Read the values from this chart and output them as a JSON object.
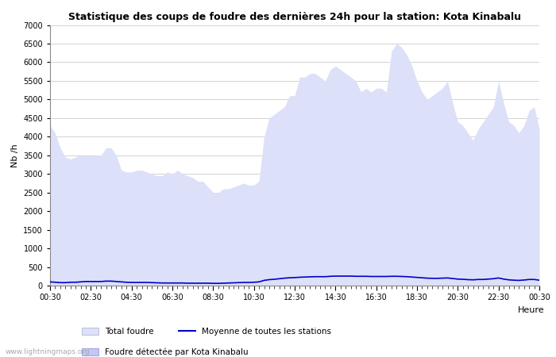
{
  "title": "Statistique des coups de foudre des dernières 24h pour la station: Kota Kinabalu",
  "ylabel": "Nb /h",
  "xlabel": "Heure",
  "watermark": "www.lightningmaps.org",
  "ylim": [
    0,
    7000
  ],
  "yticks": [
    0,
    500,
    1000,
    1500,
    2000,
    2500,
    3000,
    3500,
    4000,
    4500,
    5000,
    5500,
    6000,
    6500,
    7000
  ],
  "xtick_display": [
    "00:30",
    "02:30",
    "04:30",
    "06:30",
    "08:30",
    "10:30",
    "12:30",
    "14:30",
    "16:30",
    "18:30",
    "20:30",
    "22:30",
    "00:30"
  ],
  "total_foudre_color": "#dce0f8",
  "kota_color": "#c0c8f8",
  "moyenne_color": "#0000cc",
  "background_color": "#ffffff",
  "grid_color": "#cccccc",
  "total_foudre": [
    4300,
    4100,
    3700,
    3450,
    3400,
    3450,
    3500,
    3480,
    3480,
    3500,
    3500,
    3700,
    3700,
    3500,
    3100,
    3050,
    3050,
    3100,
    3100,
    3050,
    3000,
    2950,
    2950,
    3050,
    3000,
    3100,
    3000,
    2950,
    2900,
    2800,
    2800,
    2650,
    2500,
    2500,
    2600,
    2600,
    2650,
    2700,
    2750,
    2700,
    2700,
    2800,
    4000,
    4500,
    4600,
    4700,
    4800,
    5100,
    5100,
    5600,
    5600,
    5700,
    5700,
    5600,
    5500,
    5800,
    5900,
    5800,
    5700,
    5600,
    5500,
    5200,
    5300,
    5200,
    5300,
    5300,
    5200,
    6300,
    6500,
    6400,
    6200,
    5900,
    5500,
    5200,
    5000,
    5100,
    5200,
    5300,
    5500,
    4900,
    4400,
    4300,
    4100,
    3900,
    4200,
    4400,
    4600,
    4800,
    5500,
    4900,
    4400,
    4300,
    4100,
    4300,
    4700,
    4800,
    4200
  ],
  "moyenne": [
    100,
    90,
    80,
    80,
    90,
    90,
    100,
    110,
    110,
    110,
    110,
    120,
    120,
    110,
    100,
    90,
    85,
    85,
    85,
    85,
    80,
    75,
    70,
    70,
    70,
    70,
    70,
    65,
    65,
    65,
    65,
    65,
    60,
    60,
    65,
    70,
    75,
    80,
    85,
    85,
    90,
    100,
    140,
    160,
    170,
    185,
    200,
    210,
    215,
    225,
    230,
    235,
    240,
    240,
    240,
    250,
    255,
    255,
    255,
    255,
    250,
    250,
    250,
    245,
    245,
    245,
    245,
    250,
    250,
    245,
    240,
    230,
    220,
    210,
    200,
    195,
    195,
    200,
    205,
    190,
    175,
    170,
    160,
    155,
    165,
    165,
    175,
    185,
    205,
    175,
    155,
    145,
    140,
    150,
    165,
    165,
    145
  ]
}
